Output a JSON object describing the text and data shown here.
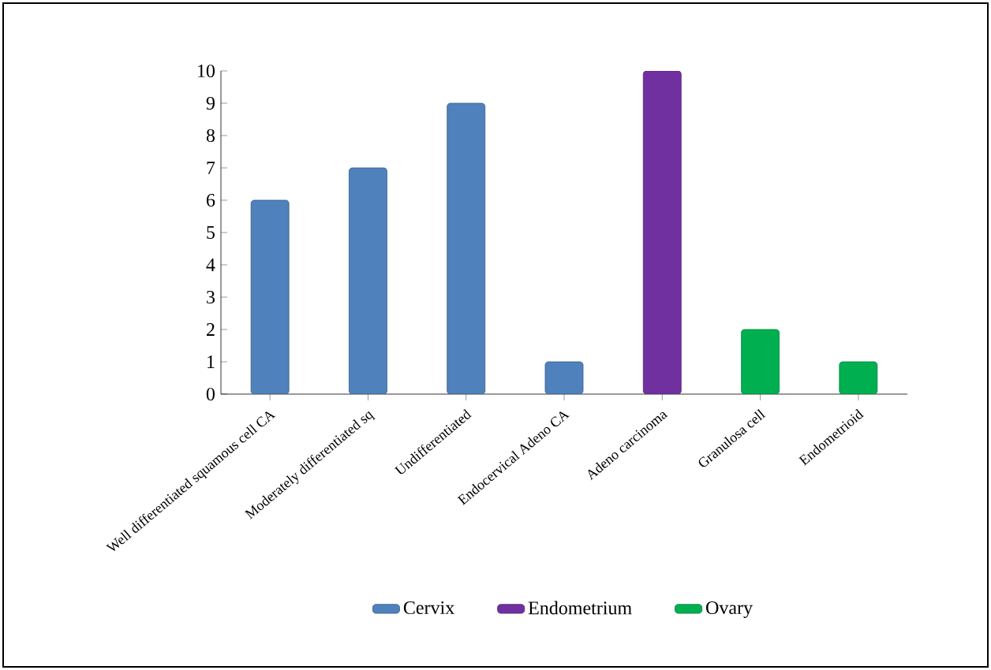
{
  "chart_data": {
    "type": "bar",
    "stacked": true,
    "categories": [
      "Well differentiated  squamous cell CA",
      "Moderately differentiated  sq",
      "Undifferentiated",
      "Endocervical Adeno CA",
      "Adeno carcinoma",
      "Granulosa cell",
      "Endometrioid"
    ],
    "series": [
      {
        "name": "Cervix",
        "color": "#4f81bd",
        "values": [
          6,
          7,
          9,
          1,
          null,
          null,
          null
        ]
      },
      {
        "name": "Endometrium",
        "color": "#7030a0",
        "values": [
          null,
          null,
          null,
          null,
          10,
          null,
          null
        ]
      },
      {
        "name": "Ovary",
        "color": "#00b050",
        "values": [
          null,
          null,
          null,
          null,
          null,
          2,
          1
        ]
      }
    ],
    "ylim": [
      0,
      10
    ],
    "yticks": [
      0,
      1,
      2,
      3,
      4,
      5,
      6,
      7,
      8,
      9,
      10
    ],
    "grid": false,
    "legend": "bottom"
  }
}
